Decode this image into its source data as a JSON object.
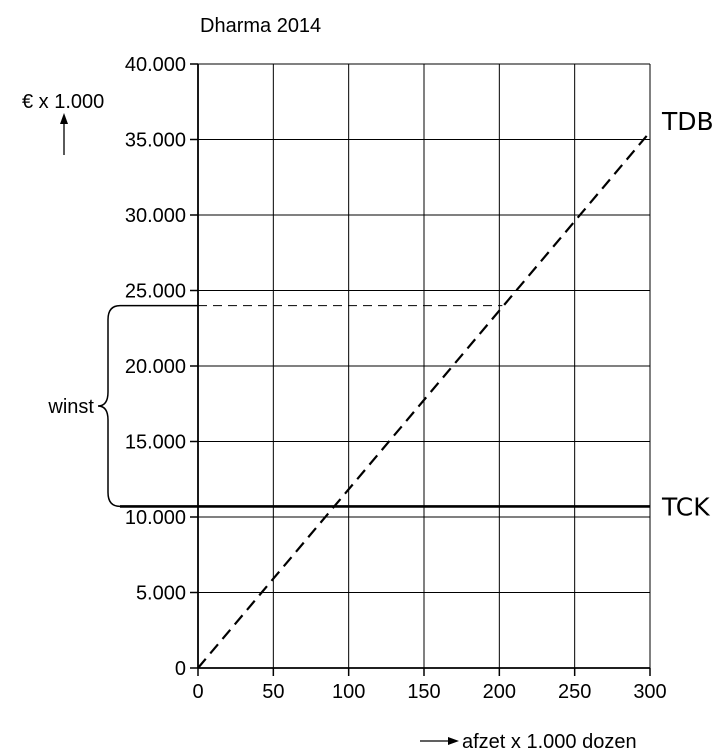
{
  "chart_data": {
    "type": "line",
    "title": "Dharma 2014",
    "ylabel": "€ x 1.000",
    "xlabel": "afzet x 1.000 dozen",
    "xlim": [
      0,
      300
    ],
    "ylim": [
      0,
      40000
    ],
    "xticks": [
      0,
      50,
      100,
      150,
      200,
      250,
      300
    ],
    "yticks": [
      0,
      5000,
      10000,
      15000,
      20000,
      25000,
      30000,
      35000,
      40000
    ],
    "xtick_labels": [
      "0",
      "50",
      "100",
      "150",
      "200",
      "250",
      "300"
    ],
    "ytick_labels": [
      "0",
      "5.000",
      "10.000",
      "15.000",
      "20.000",
      "25.000",
      "30.000",
      "35.000",
      "40.000"
    ],
    "grid": true,
    "series": [
      {
        "name": "TDB",
        "style": "dashed",
        "x": [
          0,
          300
        ],
        "y": [
          0,
          35500
        ]
      },
      {
        "name": "TCK",
        "style": "solid",
        "x": [
          0,
          300
        ],
        "y": [
          10700,
          10700
        ]
      }
    ],
    "annotations": {
      "reference_line": {
        "y": 24000,
        "x_end": 202,
        "style": "dashed"
      },
      "brace": {
        "label": "winst",
        "y_from": 10700,
        "y_to": 24000
      }
    }
  }
}
